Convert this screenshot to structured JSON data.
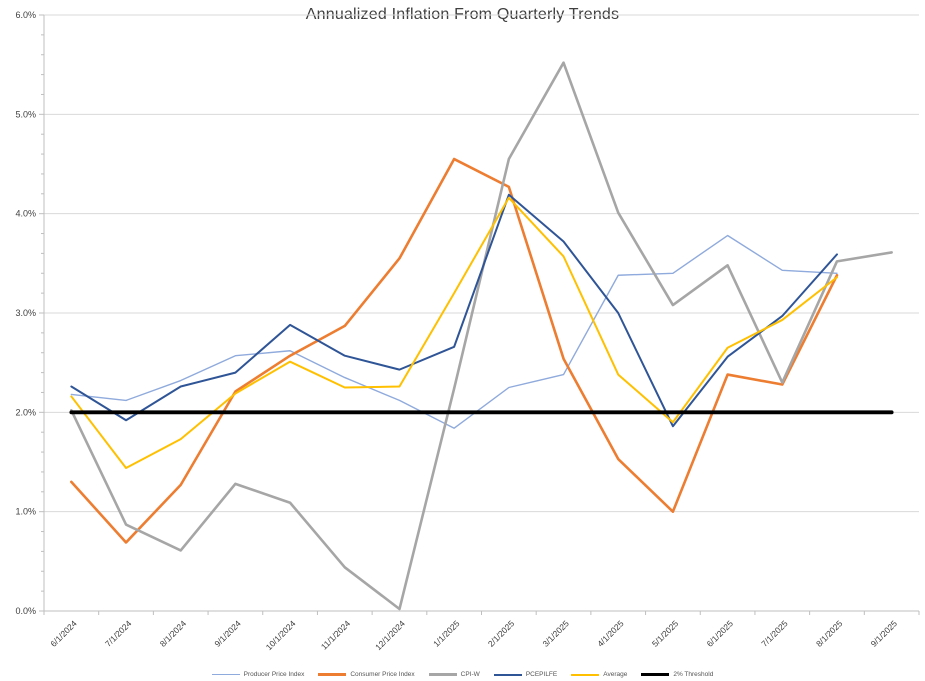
{
  "chart_data": {
    "type": "line",
    "title": "Annualized Inflation From Quarterly Trends",
    "categories": [
      "6/1/2024",
      "7/1/2024",
      "8/1/2024",
      "9/1/2024",
      "10/1/2024",
      "11/1/2024",
      "12/1/2024",
      "1/1/2025",
      "2/1/2025",
      "3/1/2025",
      "4/1/2025",
      "5/1/2025",
      "6/1/2025",
      "7/1/2025",
      "8/1/2025",
      "9/1/2025"
    ],
    "series": [
      {
        "name": "Producer Price Index",
        "color": "#8FAADC",
        "stroke_width": 1.4,
        "values": [
          2.18,
          2.12,
          2.32,
          2.57,
          2.62,
          2.35,
          2.12,
          1.84,
          2.25,
          2.38,
          3.38,
          3.4,
          3.78,
          3.43,
          3.4,
          null
        ]
      },
      {
        "name": "Consumer Price Index",
        "color": "#ED7D31",
        "stroke_width": 2.6,
        "values": [
          1.3,
          0.69,
          1.27,
          2.21,
          2.57,
          2.87,
          3.55,
          4.55,
          4.27,
          2.54,
          1.53,
          1.0,
          2.38,
          2.28,
          3.38,
          null
        ]
      },
      {
        "name": "CPI-W",
        "color": "#A6A6A6",
        "stroke_width": 2.6,
        "values": [
          2.02,
          0.87,
          0.61,
          1.28,
          1.09,
          0.44,
          0.02,
          2.24,
          4.55,
          5.52,
          4.01,
          3.08,
          3.48,
          2.3,
          3.52,
          3.61
        ]
      },
      {
        "name": "PCEPILFE",
        "color": "#2F5597",
        "stroke_width": 2.0,
        "values": [
          2.26,
          1.92,
          2.26,
          2.4,
          2.88,
          2.57,
          2.43,
          2.66,
          4.19,
          3.72,
          3.0,
          1.86,
          2.56,
          2.97,
          3.59,
          null
        ]
      },
      {
        "name": "Average",
        "color": "#FFC000",
        "stroke_width": 2.0,
        "values": [
          2.16,
          1.44,
          1.73,
          2.19,
          2.51,
          2.25,
          2.26,
          3.2,
          4.16,
          3.57,
          2.38,
          1.9,
          2.65,
          2.93,
          3.36,
          null
        ]
      },
      {
        "name": "2% Threshold",
        "color": "#000000",
        "stroke_width": 3.8,
        "values": [
          2.0,
          2.0,
          2.0,
          2.0,
          2.0,
          2.0,
          2.0,
          2.0,
          2.0,
          2.0,
          2.0,
          2.0,
          2.0,
          2.0,
          2.0,
          2.0
        ]
      }
    ],
    "ylim": [
      0,
      6
    ],
    "y_tick_labels": [
      "0.0%",
      "1.0%",
      "2.0%",
      "3.0%",
      "4.0%",
      "5.0%",
      "6.0%"
    ],
    "y_major_step": 1.0,
    "y_minor_step": 0.2,
    "grid": "horizontal-only",
    "legend_position": "bottom",
    "x_label_rotation_deg": -45
  },
  "style": {
    "gridline_color": "#D9D9D9",
    "axis_color": "#BFBFBF",
    "tick_label_color": "#404040",
    "title_color": "#3F3F3F"
  }
}
